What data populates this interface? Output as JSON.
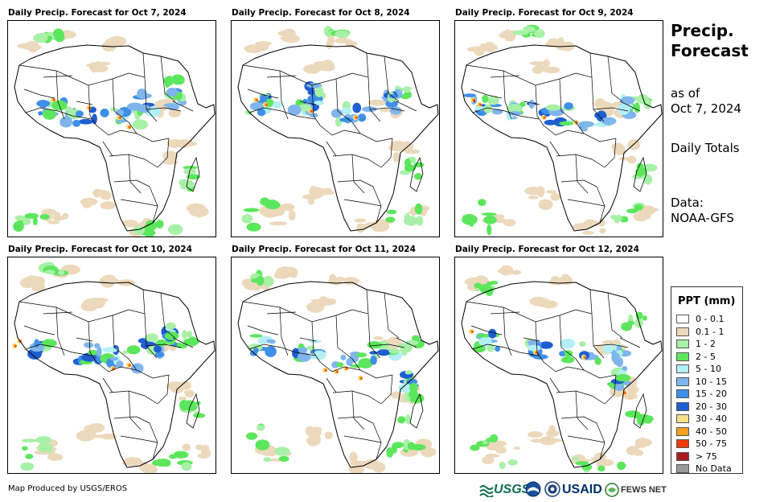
{
  "panels": [
    {
      "title": "Daily Precip. Forecast for Oct 7, 2024"
    },
    {
      "title": "Daily Precip. Forecast for Oct 8, 2024"
    },
    {
      "title": "Daily Precip. Forecast for Oct 9, 2024"
    },
    {
      "title": "Daily Precip. Forecast for Oct 10, 2024"
    },
    {
      "title": "Daily Precip. Forecast for Oct 11, 2024"
    },
    {
      "title": "Daily Precip. Forecast for Oct 12, 2024"
    }
  ],
  "side": {
    "title_line1": "Precip.",
    "title_line2": "Forecast",
    "asof_line1": "as of",
    "asof_line2": "Oct 7, 2024",
    "totals": "Daily Totals",
    "data_line1": "Data:",
    "data_line2": "NOAA-GFS"
  },
  "legend": {
    "title": "PPT (mm)",
    "items": [
      {
        "label": "0 - 0.1",
        "color": "#ffffff"
      },
      {
        "label": "0.1 - 1",
        "color": "#ecd9bc"
      },
      {
        "label": "1 - 2",
        "color": "#a8f0a8"
      },
      {
        "label": "2 - 5",
        "color": "#5ce65c"
      },
      {
        "label": "5 - 10",
        "color": "#b2f0f5"
      },
      {
        "label": "10 - 15",
        "color": "#7fb5ec"
      },
      {
        "label": "15 - 20",
        "color": "#3f8fe6"
      },
      {
        "label": "20 - 30",
        "color": "#1e5fd0"
      },
      {
        "label": "30 - 40",
        "color": "#f7e08a"
      },
      {
        "label": "40 - 50",
        "color": "#f5a020"
      },
      {
        "label": "50 - 75",
        "color": "#ee3a0c"
      },
      {
        "label": "> 75",
        "color": "#a81e1e"
      },
      {
        "label": "No Data",
        "color": "#9a9a9a"
      }
    ]
  },
  "footer": {
    "produced_by": "Map Produced by USGS/EROS",
    "logos": {
      "usgs": "USGS",
      "usaid": "USAID",
      "fewsnet": "FEWS NET"
    }
  }
}
